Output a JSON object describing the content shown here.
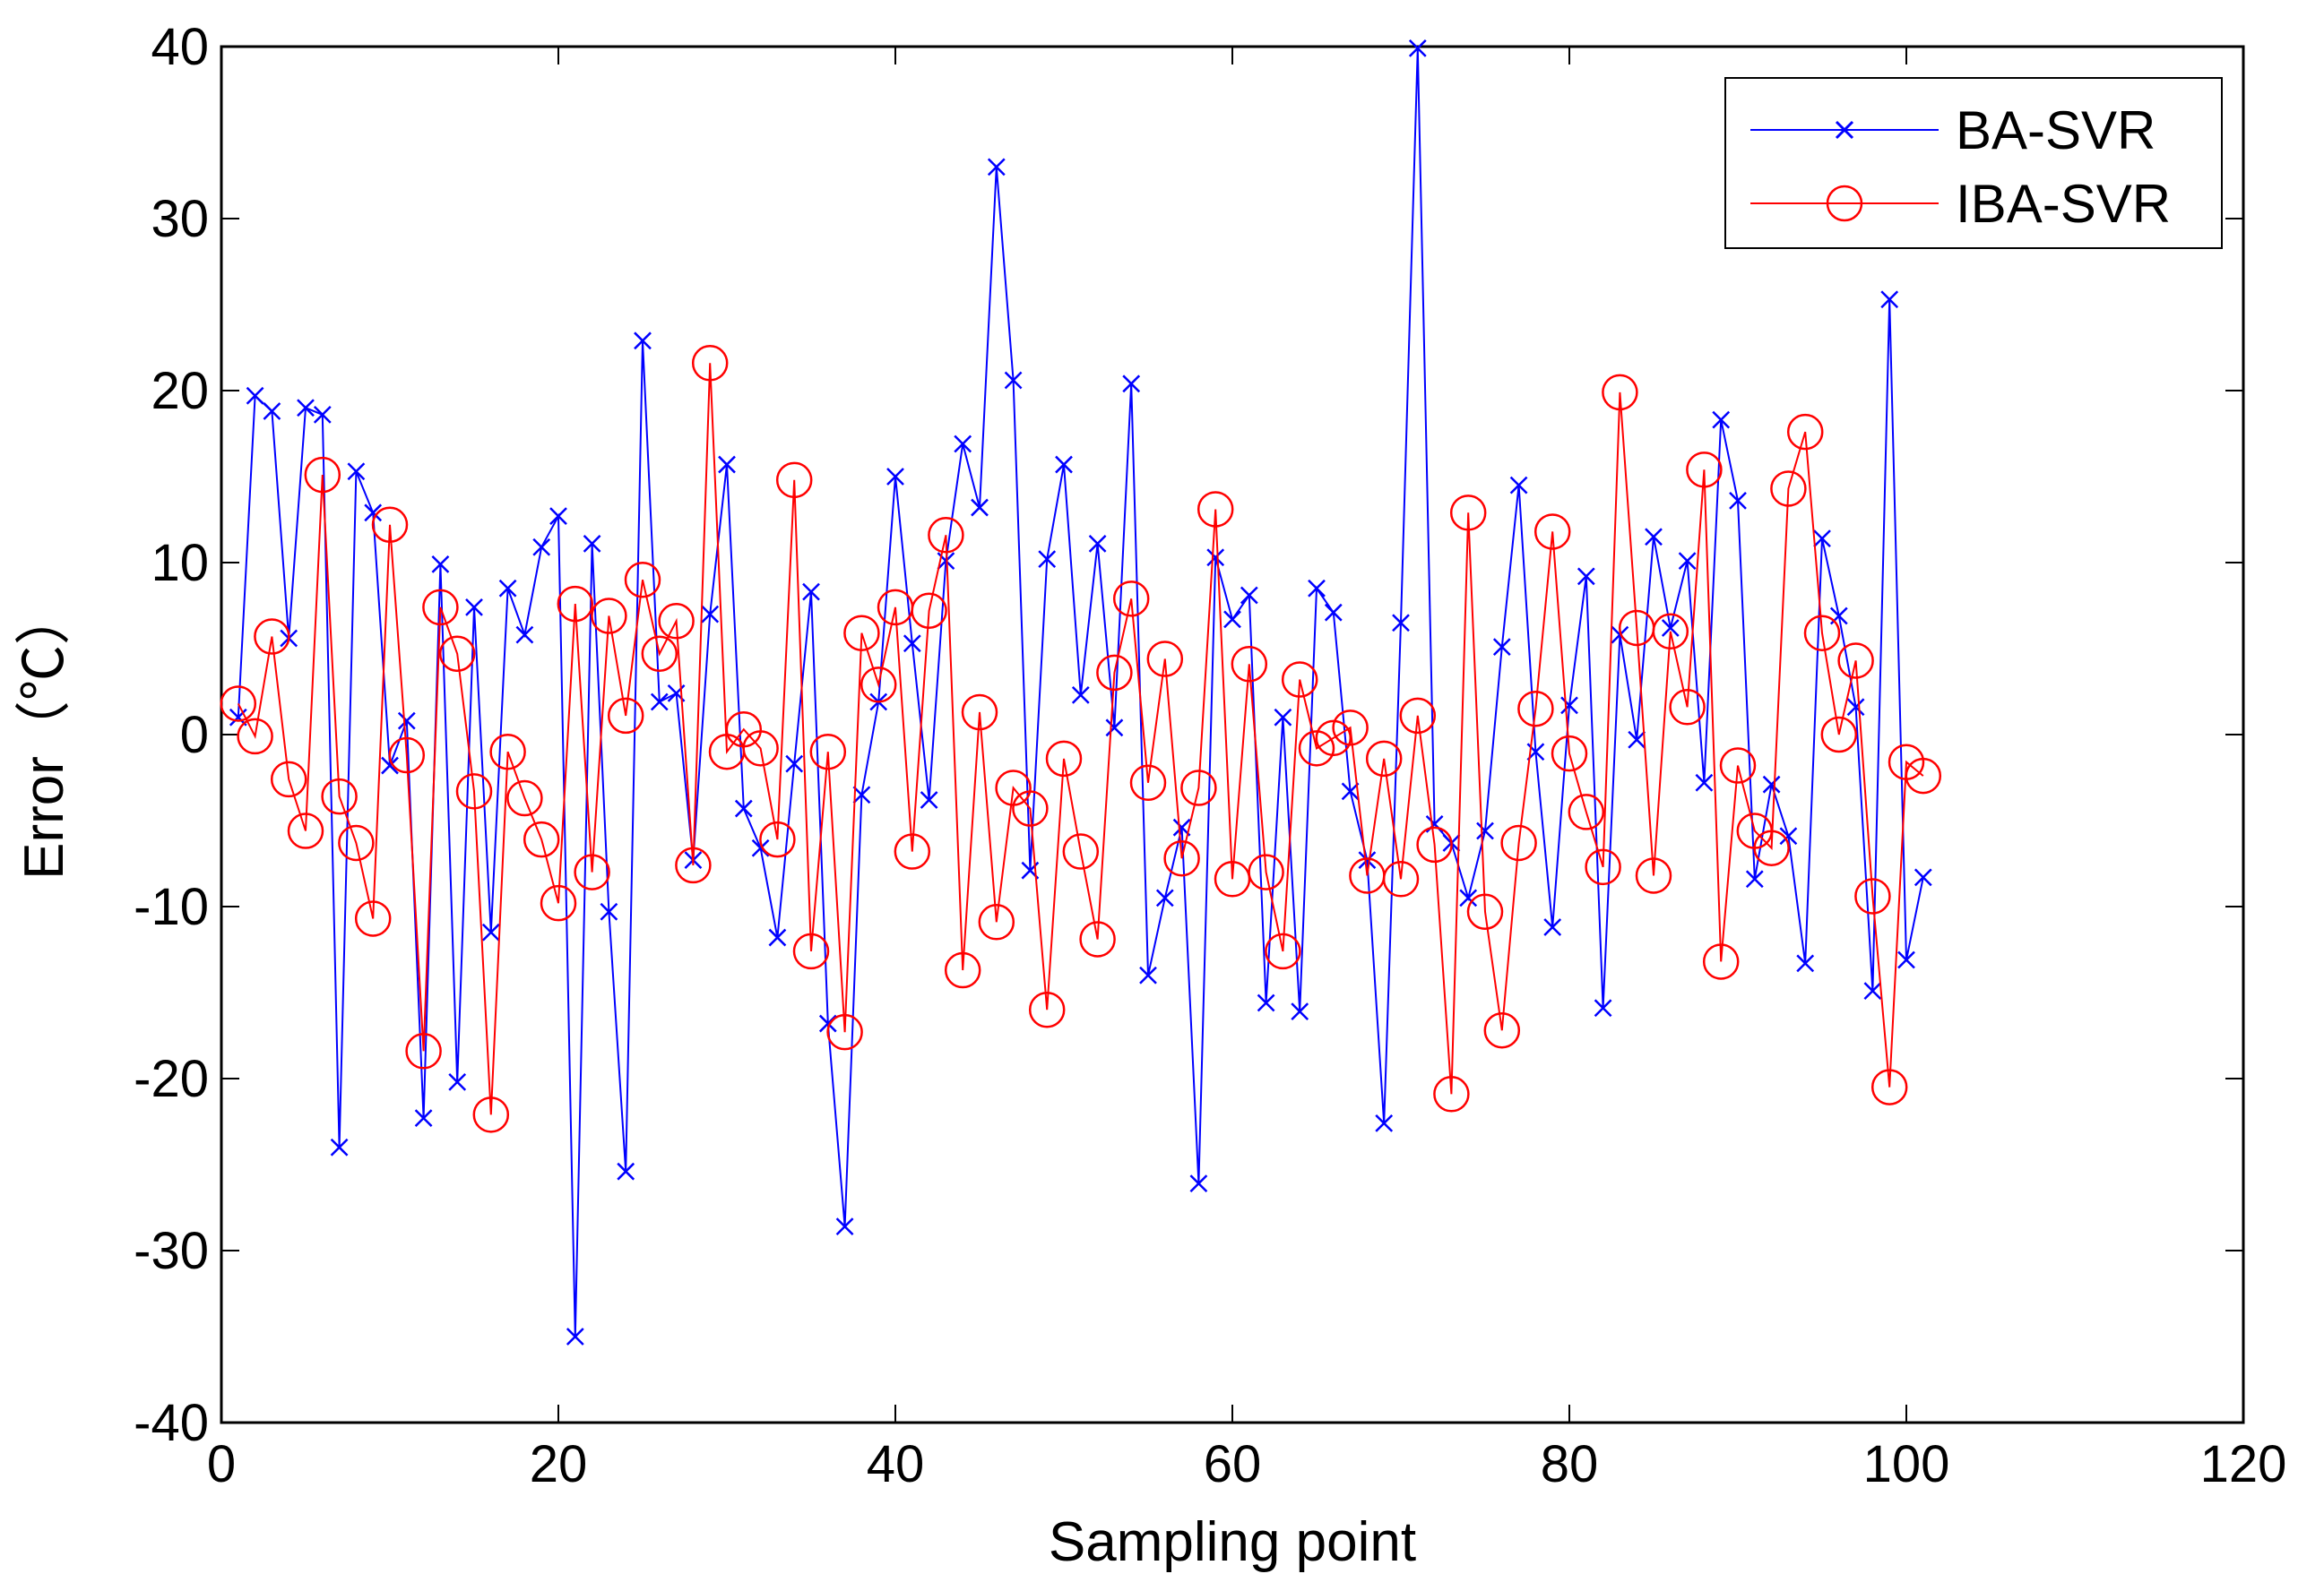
{
  "chart_data": {
    "type": "line",
    "title": "",
    "xlabel": "Sampling point",
    "ylabel": "Error（℃）",
    "xlim": [
      0,
      120
    ],
    "ylim": [
      -40,
      40
    ],
    "xticks": [
      0,
      20,
      40,
      60,
      80,
      100,
      120
    ],
    "yticks": [
      -40,
      -30,
      -20,
      -10,
      0,
      10,
      20,
      30,
      40
    ],
    "grid": false,
    "legend_position": "top-right",
    "x": [
      1,
      2,
      3,
      4,
      5,
      6,
      7,
      8,
      9,
      10,
      11,
      12,
      13,
      14,
      15,
      16,
      17,
      18,
      19,
      20,
      21,
      22,
      23,
      24,
      25,
      26,
      27,
      28,
      29,
      30,
      31,
      32,
      33,
      34,
      35,
      36,
      37,
      38,
      39,
      40,
      41,
      42,
      43,
      44,
      45,
      46,
      47,
      48,
      49,
      50,
      51,
      52,
      53,
      54,
      55,
      56,
      57,
      58,
      59,
      60,
      61,
      62,
      63,
      64,
      65,
      66,
      67,
      68,
      69,
      70,
      71,
      72,
      73,
      74,
      75,
      76,
      77,
      78,
      79,
      80,
      81,
      82,
      83,
      84,
      85,
      86,
      87,
      88,
      89,
      90,
      91,
      92,
      93,
      94,
      95,
      96,
      97,
      98,
      99,
      100,
      101
    ],
    "series": [
      {
        "name": "BA-SVR",
        "color": "#0000ff",
        "marker": "x",
        "values": [
          1.0,
          19.7,
          18.8,
          5.6,
          19.0,
          18.6,
          -24.0,
          15.3,
          12.9,
          -1.8,
          0.8,
          -22.3,
          9.9,
          -20.2,
          7.4,
          -11.5,
          8.5,
          5.8,
          10.9,
          12.7,
          -35.0,
          11.1,
          -10.3,
          -25.4,
          22.9,
          1.9,
          2.4,
          -7.3,
          7.0,
          15.7,
          -4.3,
          -6.6,
          -11.8,
          -1.7,
          8.3,
          -16.8,
          -28.6,
          -3.5,
          1.9,
          15.0,
          5.3,
          -3.8,
          10.1,
          16.9,
          13.2,
          33.0,
          20.6,
          -7.9,
          10.2,
          15.7,
          2.3,
          11.1,
          0.4,
          20.4,
          -14.0,
          -9.5,
          -5.4,
          -26.1,
          10.3,
          6.7,
          8.1,
          -15.6,
          1.0,
          -16.1,
          8.5,
          7.1,
          -3.3,
          -7.3,
          -22.6,
          6.5,
          39.9,
          -5.2,
          -6.3,
          -9.5,
          -5.6,
          5.1,
          14.5,
          -1.0,
          -11.2,
          1.7,
          9.2,
          -15.9,
          5.8,
          -0.3,
          11.5,
          6.2,
          10.1,
          -2.8,
          18.3,
          13.6,
          -8.4,
          -2.9,
          -5.9,
          -13.3,
          11.4,
          6.9,
          1.6,
          -14.9,
          25.3,
          -13.1,
          -8.3
        ]
      },
      {
        "name": "IBA-SVR",
        "color": "#ff0000",
        "marker": "o",
        "values": [
          1.8,
          -0.1,
          5.7,
          -2.6,
          -5.6,
          15.1,
          -3.6,
          -6.3,
          -10.7,
          12.2,
          -1.2,
          -18.4,
          7.4,
          4.7,
          -3.3,
          -22.1,
          -1.0,
          -3.7,
          -6.1,
          -9.8,
          7.6,
          -8.0,
          6.9,
          1.1,
          9.0,
          4.7,
          6.6,
          -7.6,
          21.6,
          -1.0,
          0.3,
          -0.8,
          -6.1,
          14.8,
          -12.6,
          -1.0,
          -17.3,
          5.9,
          2.9,
          7.4,
          -6.8,
          7.2,
          11.6,
          -13.7,
          1.3,
          -10.9,
          -3.1,
          -4.3,
          -16.0,
          -1.4,
          -6.8,
          -11.9,
          3.6,
          7.9,
          -2.8,
          4.4,
          -7.2,
          -3.1,
          13.1,
          -8.4,
          4.1,
          -8.0,
          -12.6,
          3.2,
          -0.8,
          -0.2,
          0.4,
          -8.2,
          -1.4,
          -8.4,
          1.1,
          -6.4,
          -20.9,
          12.9,
          -10.3,
          -17.2,
          -6.3,
          1.5,
          11.8,
          -1.1,
          -4.5,
          -7.7,
          19.9,
          6.2,
          -8.2,
          6.0,
          1.6,
          15.4,
          -13.2,
          -1.8,
          -5.6,
          -6.6,
          14.3,
          17.6,
          5.9,
          0.0,
          4.3,
          -9.4,
          -20.5,
          -1.6,
          -2.4
        ]
      }
    ]
  }
}
